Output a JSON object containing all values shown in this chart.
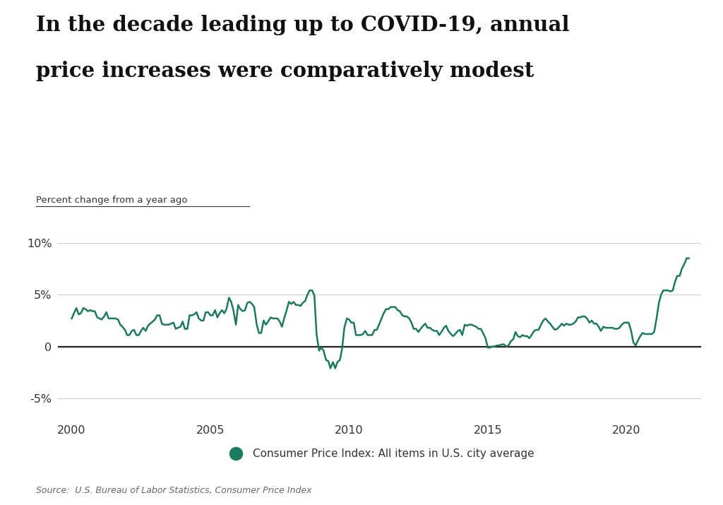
{
  "title_line1": "In the decade leading up to COVID-19, annual",
  "title_line2": "price increases were comparatively modest",
  "ylabel": "Percent change from a year ago",
  "source": "Source:  U.S. Bureau of Labor Statistics, Consumer Price Index",
  "legend_label": "Consumer Price Index: All items in U.S. city average",
  "line_color": "#1a7a5e",
  "background_color": "#ffffff",
  "ylim": [
    -7,
    11
  ],
  "yticks": [
    -5,
    0,
    5,
    10
  ],
  "ytick_labels": [
    "-5%",
    "0",
    "5%",
    "10%"
  ],
  "xticks": [
    2000,
    2005,
    2010,
    2015,
    2020
  ],
  "data": {
    "x": [
      2000.0,
      2000.08,
      2000.17,
      2000.25,
      2000.33,
      2000.42,
      2000.5,
      2000.58,
      2000.67,
      2000.75,
      2000.83,
      2000.92,
      2001.0,
      2001.08,
      2001.17,
      2001.25,
      2001.33,
      2001.42,
      2001.5,
      2001.58,
      2001.67,
      2001.75,
      2001.83,
      2001.92,
      2002.0,
      2002.08,
      2002.17,
      2002.25,
      2002.33,
      2002.42,
      2002.5,
      2002.58,
      2002.67,
      2002.75,
      2002.83,
      2002.92,
      2003.0,
      2003.08,
      2003.17,
      2003.25,
      2003.33,
      2003.42,
      2003.5,
      2003.58,
      2003.67,
      2003.75,
      2003.83,
      2003.92,
      2004.0,
      2004.08,
      2004.17,
      2004.25,
      2004.33,
      2004.42,
      2004.5,
      2004.58,
      2004.67,
      2004.75,
      2004.83,
      2004.92,
      2005.0,
      2005.08,
      2005.17,
      2005.25,
      2005.33,
      2005.42,
      2005.5,
      2005.58,
      2005.67,
      2005.75,
      2005.83,
      2005.92,
      2006.0,
      2006.08,
      2006.17,
      2006.25,
      2006.33,
      2006.42,
      2006.5,
      2006.58,
      2006.67,
      2006.75,
      2006.83,
      2006.92,
      2007.0,
      2007.08,
      2007.17,
      2007.25,
      2007.33,
      2007.42,
      2007.5,
      2007.58,
      2007.67,
      2007.75,
      2007.83,
      2007.92,
      2008.0,
      2008.08,
      2008.17,
      2008.25,
      2008.33,
      2008.42,
      2008.5,
      2008.58,
      2008.67,
      2008.75,
      2008.83,
      2008.92,
      2009.0,
      2009.08,
      2009.17,
      2009.25,
      2009.33,
      2009.42,
      2009.5,
      2009.58,
      2009.67,
      2009.75,
      2009.83,
      2009.92,
      2010.0,
      2010.08,
      2010.17,
      2010.25,
      2010.33,
      2010.42,
      2010.5,
      2010.58,
      2010.67,
      2010.75,
      2010.83,
      2010.92,
      2011.0,
      2011.08,
      2011.17,
      2011.25,
      2011.33,
      2011.42,
      2011.5,
      2011.58,
      2011.67,
      2011.75,
      2011.83,
      2011.92,
      2012.0,
      2012.08,
      2012.17,
      2012.25,
      2012.33,
      2012.42,
      2012.5,
      2012.58,
      2012.67,
      2012.75,
      2012.83,
      2012.92,
      2013.0,
      2013.08,
      2013.17,
      2013.25,
      2013.33,
      2013.42,
      2013.5,
      2013.58,
      2013.67,
      2013.75,
      2013.83,
      2013.92,
      2014.0,
      2014.08,
      2014.17,
      2014.25,
      2014.33,
      2014.42,
      2014.5,
      2014.58,
      2014.67,
      2014.75,
      2014.83,
      2014.92,
      2015.0,
      2015.08,
      2015.17,
      2015.25,
      2015.33,
      2015.42,
      2015.5,
      2015.58,
      2015.67,
      2015.75,
      2015.83,
      2015.92,
      2016.0,
      2016.08,
      2016.17,
      2016.25,
      2016.33,
      2016.42,
      2016.5,
      2016.58,
      2016.67,
      2016.75,
      2016.83,
      2016.92,
      2017.0,
      2017.08,
      2017.17,
      2017.25,
      2017.33,
      2017.42,
      2017.5,
      2017.58,
      2017.67,
      2017.75,
      2017.83,
      2017.92,
      2018.0,
      2018.08,
      2018.17,
      2018.25,
      2018.33,
      2018.42,
      2018.5,
      2018.58,
      2018.67,
      2018.75,
      2018.83,
      2018.92,
      2019.0,
      2019.08,
      2019.17,
      2019.25,
      2019.33,
      2019.42,
      2019.5,
      2019.58,
      2019.67,
      2019.75,
      2019.83,
      2019.92,
      2020.0,
      2020.08,
      2020.17,
      2020.25,
      2020.33,
      2020.42,
      2020.5,
      2020.58,
      2020.67,
      2020.75,
      2020.83,
      2020.92,
      2021.0,
      2021.08,
      2021.17,
      2021.25,
      2021.33,
      2021.42,
      2021.5,
      2021.58,
      2021.67,
      2021.75,
      2021.83,
      2021.92,
      2022.0,
      2022.08,
      2022.17,
      2022.25
    ],
    "y": [
      2.7,
      3.2,
      3.7,
      3.1,
      3.2,
      3.7,
      3.6,
      3.4,
      3.5,
      3.4,
      3.4,
      2.8,
      2.7,
      2.6,
      2.9,
      3.3,
      2.7,
      2.7,
      2.7,
      2.7,
      2.6,
      2.1,
      1.9,
      1.6,
      1.1,
      1.1,
      1.5,
      1.6,
      1.1,
      1.1,
      1.5,
      1.8,
      1.5,
      2.0,
      2.2,
      2.4,
      2.6,
      3.0,
      3.0,
      2.2,
      2.1,
      2.1,
      2.1,
      2.2,
      2.3,
      1.7,
      1.8,
      1.9,
      2.4,
      1.7,
      1.7,
      3.0,
      3.0,
      3.1,
      3.3,
      2.7,
      2.5,
      2.5,
      3.3,
      3.3,
      3.0,
      3.0,
      3.5,
      2.8,
      3.2,
      3.5,
      3.2,
      3.6,
      4.7,
      4.3,
      3.5,
      2.1,
      4.0,
      3.6,
      3.4,
      3.5,
      4.2,
      4.3,
      4.1,
      3.8,
      2.1,
      1.3,
      1.3,
      2.5,
      2.1,
      2.4,
      2.8,
      2.7,
      2.7,
      2.7,
      2.4,
      1.9,
      2.8,
      3.5,
      4.3,
      4.1,
      4.3,
      4.0,
      4.0,
      3.9,
      4.2,
      4.4,
      5.0,
      5.4,
      5.4,
      4.9,
      1.1,
      -0.4,
      -0.1,
      -0.4,
      -1.3,
      -1.4,
      -2.1,
      -1.5,
      -2.1,
      -1.5,
      -1.3,
      -0.2,
      1.8,
      2.7,
      2.6,
      2.3,
      2.3,
      1.1,
      1.1,
      1.1,
      1.2,
      1.5,
      1.1,
      1.1,
      1.1,
      1.6,
      1.6,
      2.1,
      2.7,
      3.2,
      3.6,
      3.6,
      3.8,
      3.8,
      3.8,
      3.5,
      3.4,
      3.0,
      2.9,
      2.9,
      2.7,
      2.3,
      1.7,
      1.7,
      1.4,
      1.7,
      2.0,
      2.2,
      1.8,
      1.8,
      1.6,
      1.5,
      1.5,
      1.1,
      1.4,
      1.8,
      2.0,
      1.5,
      1.2,
      1.0,
      1.2,
      1.5,
      1.6,
      1.1,
      2.1,
      2.0,
      2.1,
      2.1,
      2.0,
      1.9,
      1.7,
      1.7,
      1.3,
      0.8,
      -0.1,
      -0.1,
      0.0,
      0.0,
      0.1,
      0.1,
      0.2,
      0.2,
      0.0,
      0.1,
      0.5,
      0.7,
      1.4,
      1.0,
      0.9,
      1.1,
      1.0,
      1.0,
      0.8,
      1.1,
      1.5,
      1.6,
      1.6,
      2.1,
      2.5,
      2.7,
      2.4,
      2.2,
      1.9,
      1.6,
      1.7,
      1.9,
      2.2,
      2.0,
      2.2,
      2.1,
      2.1,
      2.2,
      2.4,
      2.8,
      2.8,
      2.9,
      2.9,
      2.7,
      2.3,
      2.5,
      2.2,
      2.2,
      1.9,
      1.5,
      1.9,
      1.8,
      1.8,
      1.8,
      1.8,
      1.7,
      1.7,
      1.8,
      2.1,
      2.3,
      2.3,
      2.3,
      1.5,
      0.4,
      0.1,
      0.6,
      1.0,
      1.3,
      1.2,
      1.2,
      1.2,
      1.2,
      1.4,
      2.6,
      4.2,
      5.0,
      5.4,
      5.4,
      5.4,
      5.3,
      5.4,
      6.2,
      6.8,
      6.8,
      7.5,
      7.9,
      8.5,
      8.5
    ]
  }
}
